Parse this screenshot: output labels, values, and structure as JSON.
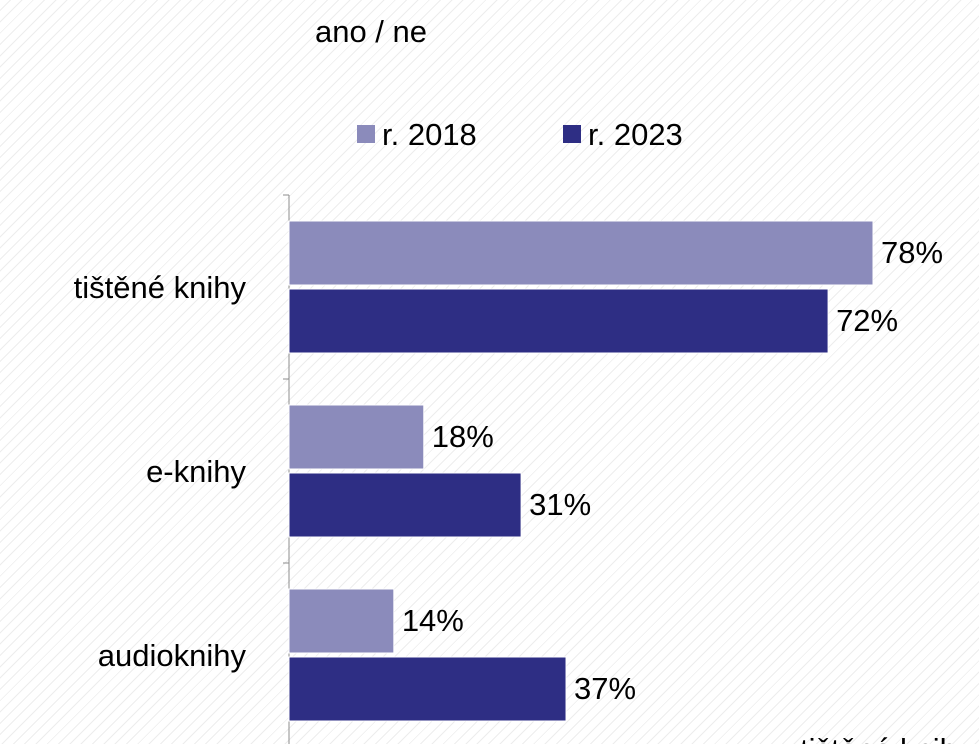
{
  "chart_data": {
    "type": "bar",
    "orientation": "horizontal",
    "title": "ano / ne",
    "categories": [
      "tištěné knihy",
      "e-knihy",
      "audioknihy"
    ],
    "series": [
      {
        "name": "r. 2018",
        "values": [
          78,
          18,
          14
        ],
        "labels": [
          "78%",
          "18%",
          "14%"
        ],
        "color": "#8b8bbb"
      },
      {
        "name": "r. 2023",
        "values": [
          72,
          31,
          37
        ],
        "labels": [
          "72%",
          "31%",
          "37%"
        ],
        "color": "#2e2e84"
      }
    ],
    "xlim": [
      0,
      100
    ],
    "unit": "%",
    "legend_position": "top",
    "grid": false
  },
  "footer_text": "tištěné knihy"
}
